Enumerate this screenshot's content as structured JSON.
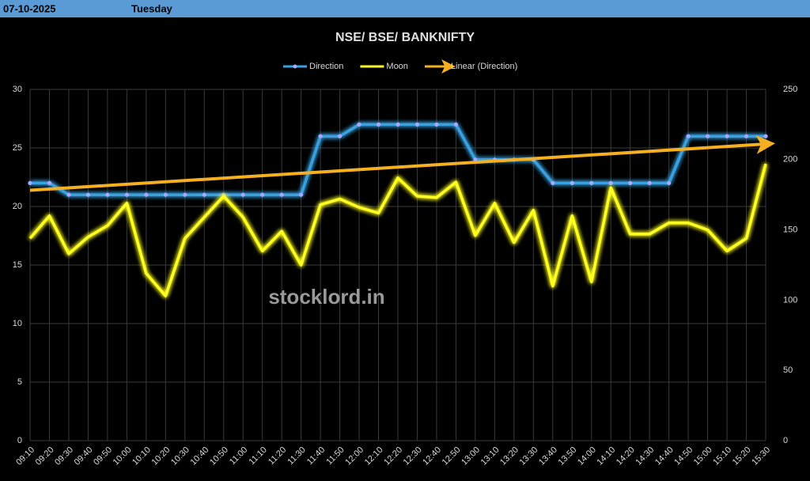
{
  "header": {
    "date": "07-10-2025",
    "day": "Tuesday"
  },
  "chart_data": {
    "type": "line",
    "title": "NSE/ BSE/ BANKNIFTY",
    "watermark": "stocklord.in",
    "categories": [
      "09:10",
      "09:20",
      "09:30",
      "09:40",
      "09:50",
      "10:00",
      "10:10",
      "10:20",
      "10:30",
      "10:40",
      "10:50",
      "11:00",
      "11:10",
      "11:20",
      "11:30",
      "11:40",
      "11:50",
      "12:00",
      "12:10",
      "12:20",
      "12:30",
      "12:40",
      "12:50",
      "13:00",
      "13:10",
      "13:20",
      "13:30",
      "13:40",
      "13:50",
      "14:00",
      "14:10",
      "14:20",
      "14:30",
      "14:40",
      "14:50",
      "15:00",
      "15:10",
      "15:20",
      "15:30"
    ],
    "series": [
      {
        "name": "Direction",
        "color": "#3aa0e0",
        "markers": true,
        "values": [
          22,
          22,
          21,
          21,
          21,
          21,
          21,
          21,
          21,
          21,
          21,
          21,
          21,
          21,
          21,
          26,
          26,
          27,
          27,
          27,
          27,
          27,
          27,
          24,
          24,
          24,
          24,
          22,
          22,
          22,
          22,
          22,
          22,
          22,
          26,
          26,
          26,
          26,
          26
        ]
      },
      {
        "name": "Moon",
        "color": "#ffff22",
        "axis": "y2",
        "markers": false,
        "values": [
          144,
          160,
          133,
          145,
          153,
          169,
          119,
          103,
          144,
          159,
          174,
          159,
          135,
          149,
          125,
          168,
          172,
          166,
          162,
          187,
          174,
          173,
          184,
          146,
          169,
          141,
          164,
          110,
          160,
          113,
          180,
          147,
          147,
          155,
          155,
          150,
          135,
          144,
          197
        ]
      }
    ],
    "trendline": {
      "name": "Linear (Direction)",
      "series": 0,
      "color": "#f5b021"
    },
    "ylim": [
      0,
      30
    ],
    "yticks": [
      0,
      5,
      10,
      15,
      20,
      25,
      30
    ],
    "y2lim": [
      0,
      250
    ],
    "y2ticks": [
      0,
      50,
      100,
      150,
      200,
      250
    ],
    "grid": true
  }
}
